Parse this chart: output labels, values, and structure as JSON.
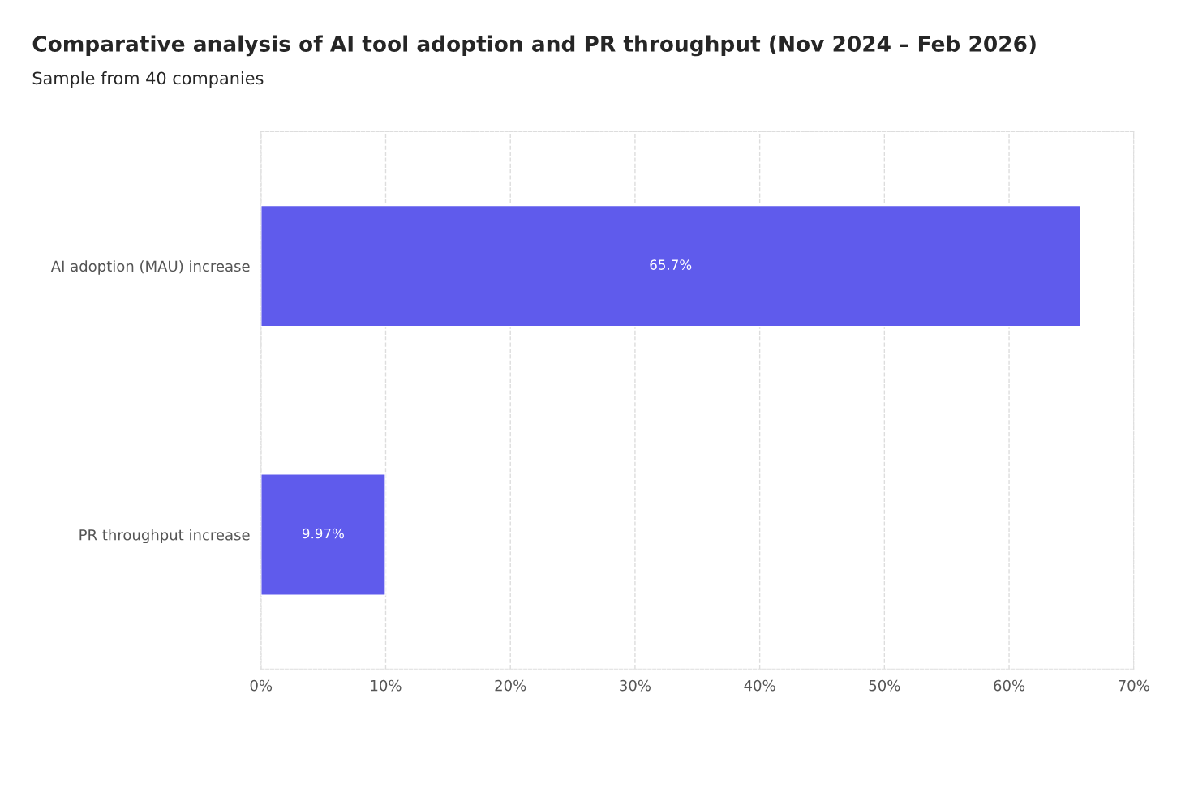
{
  "chart_data": {
    "type": "bar",
    "orientation": "horizontal",
    "title": "Comparative analysis of AI tool adoption and PR throughput (Nov 2024 – Feb 2026)",
    "subtitle": "Sample from 40 companies",
    "categories": [
      "AI adoption (MAU) increase",
      "PR throughput increase"
    ],
    "values": [
      65.7,
      9.97
    ],
    "value_labels": [
      "65.7%",
      "9.97%"
    ],
    "color": "#5f5bec",
    "xlim": [
      0,
      70
    ],
    "xticks": [
      {
        "value": 0,
        "label": "0%"
      },
      {
        "value": 10,
        "label": "10%"
      },
      {
        "value": 20,
        "label": "20%"
      },
      {
        "value": 30,
        "label": "30%"
      },
      {
        "value": 40,
        "label": "40%"
      },
      {
        "value": 50,
        "label": "50%"
      },
      {
        "value": 60,
        "label": "60%"
      },
      {
        "value": 70,
        "label": "70%"
      }
    ],
    "grid": "x"
  }
}
